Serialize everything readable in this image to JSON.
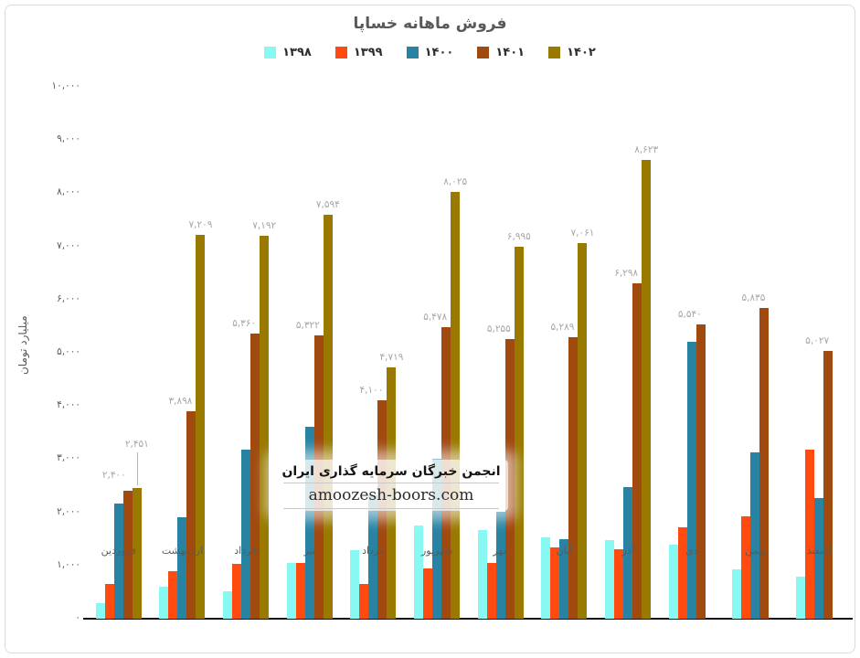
{
  "chart_data": {
    "type": "bar",
    "title": "فروش ماهانه خساپا",
    "ylabel": "میلیارد تومان",
    "xlabel": "",
    "ylim": [
      0,
      10000
    ],
    "ytick_step": 1000,
    "grid": false,
    "legend_position": "top-center",
    "direction": "rtl-months-left-to-right",
    "categories": [
      "فروردین",
      "اردیبهشت",
      "خرداد",
      "تیر",
      "مرداد",
      "شهریور",
      "مهر",
      "آبان",
      "آذر",
      "دی",
      "بهمن",
      "اسفند"
    ],
    "ytick_labels": [
      "۰",
      "۱,۰۰۰",
      "۲,۰۰۰",
      "۳,۰۰۰",
      "۴,۰۰۰",
      "۵,۰۰۰",
      "۶,۰۰۰",
      "۷,۰۰۰",
      "۸,۰۰۰",
      "۹,۰۰۰",
      "۱۰,۰۰۰"
    ],
    "series": [
      {
        "name": "۱۳۹۸",
        "color": "#87F9F2",
        "values": [
          300,
          600,
          520,
          1050,
          1290,
          1750,
          1670,
          1530,
          1480,
          1400,
          930,
          790
        ],
        "labels": [
          null,
          null,
          null,
          null,
          null,
          null,
          null,
          null,
          null,
          null,
          null,
          null
        ]
      },
      {
        "name": "۱۳۹۹",
        "color": "#FF4B10",
        "values": [
          650,
          890,
          1030,
          1050,
          650,
          950,
          1050,
          1340,
          1310,
          1720,
          1920,
          3180
        ],
        "labels": [
          null,
          null,
          null,
          null,
          null,
          null,
          null,
          null,
          null,
          null,
          null,
          null
        ]
      },
      {
        "name": "۱۴۰۰",
        "color": "#2883A3",
        "values": [
          2160,
          1900,
          3180,
          3600,
          2320,
          3000,
          2010,
          1500,
          2470,
          5200,
          3130,
          2270
        ],
        "labels": [
          null,
          null,
          null,
          null,
          null,
          null,
          null,
          null,
          null,
          null,
          null,
          null
        ]
      },
      {
        "name": "۱۴۰۱",
        "color": "#A04A10",
        "values": [
          2400,
          3898,
          5360,
          5322,
          4100,
          5478,
          5255,
          5289,
          6298,
          5540,
          5835,
          5027
        ],
        "labels": [
          "۲,۴۰۰",
          "۳,۸۹۸",
          "۵,۳۶۰",
          "۵,۳۲۲",
          "۴,۱۰۰",
          "۵,۴۷۸",
          "۵,۲۵۵",
          "۵,۲۸۹",
          "۶,۲۹۸",
          "۵,۵۴۰",
          "۵,۸۳۵",
          "۵,۰۲۷"
        ]
      },
      {
        "name": "۱۴۰۲",
        "color": "#9A7900",
        "values": [
          2451,
          7209,
          7192,
          7594,
          4719,
          8025,
          6995,
          7061,
          8623,
          null,
          null,
          null
        ],
        "labels": [
          "۲,۴۵۱",
          "۷,۲۰۹",
          "۷,۱۹۲",
          "۷,۵۹۴",
          "۴,۷۱۹",
          "۸,۰۲۵",
          "۶,۹۹۵",
          "۷,۰۶۱",
          "۸,۶۲۳",
          null,
          null,
          null
        ]
      }
    ]
  },
  "watermark": {
    "line1": "انجمن خبرگان سرمایه گذاری ایران",
    "line2": "amoozesh-boors.com"
  },
  "colors": {
    "title_text": "#595959",
    "axis_text": "#595959",
    "data_label_text": "#a6a6a6",
    "axis_line": "#111111"
  }
}
